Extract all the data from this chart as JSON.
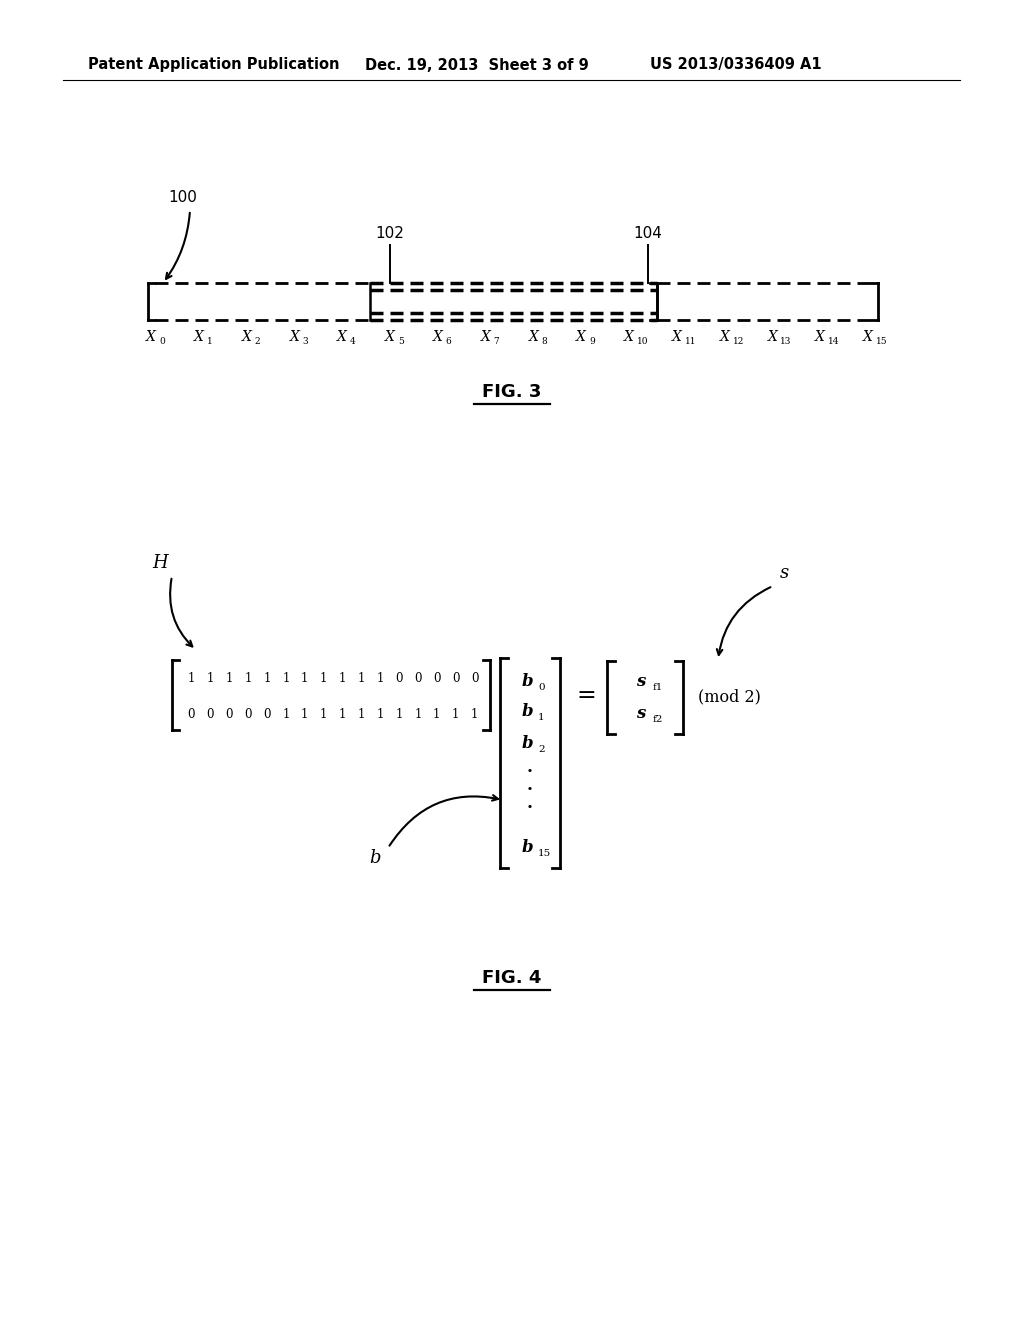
{
  "header_left": "Patent Application Publication",
  "header_mid": "Dec. 19, 2013  Sheet 3 of 9",
  "header_right": "US 2013/0336409 A1",
  "fig3_label": "FIG. 3",
  "fig4_label": "FIG. 4",
  "fig3_subscripts": [
    "0",
    "1",
    "2",
    "3",
    "4",
    "5",
    "6",
    "7",
    "8",
    "9",
    "10",
    "11",
    "12",
    "13",
    "14",
    "15"
  ],
  "label_100": "100",
  "label_102": "102",
  "label_104": "104",
  "H_row1": [
    "1",
    "1",
    "1",
    "1",
    "1",
    "1",
    "1",
    "1",
    "1",
    "1",
    "1",
    "0",
    "0",
    "0",
    "0",
    "0"
  ],
  "H_row2": [
    "0",
    "0",
    "0",
    "0",
    "0",
    "1",
    "1",
    "1",
    "1",
    "1",
    "1",
    "1",
    "1",
    "1",
    "1",
    "1"
  ],
  "b_labels": [
    "b",
    "b",
    "b",
    ".",
    ".",
    ".",
    "b"
  ],
  "b_subs": [
    "0",
    "1",
    "2",
    "",
    "",
    "",
    "15"
  ],
  "s_labels": [
    [
      "s",
      "f1"
    ],
    [
      "s",
      "f2"
    ]
  ],
  "mod2_label": "(mod 2)",
  "H_label": "H",
  "b_label": "b",
  "s_label": "s",
  "bg_color": "#ffffff",
  "fg_color": "#000000"
}
